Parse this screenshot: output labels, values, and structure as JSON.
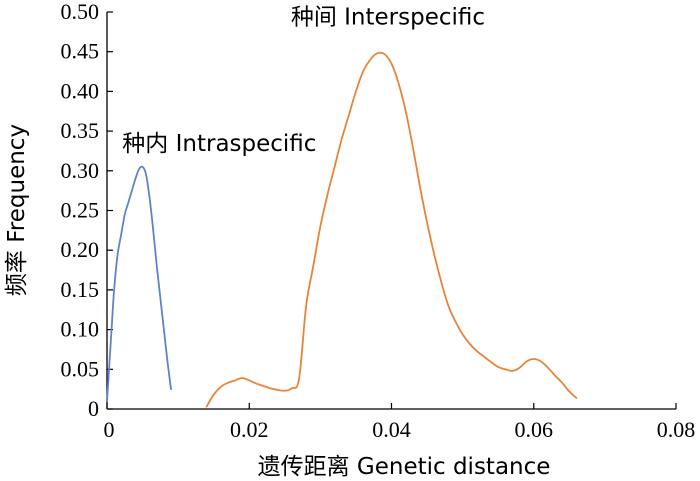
{
  "chart_data": {
    "type": "line",
    "xlabel": "遗传距离 Genetic  distance",
    "ylabel": "频率 Frequency",
    "xlim": [
      0,
      0.08
    ],
    "ylim": [
      0,
      0.5
    ],
    "x_ticks": [
      "0",
      "0.02",
      "0.04",
      "0.06",
      "0.08"
    ],
    "y_ticks": [
      "0",
      "0.05",
      "0.10",
      "0.15",
      "0.20",
      "0.25",
      "0.30",
      "0.35",
      "0.40",
      "0.45",
      "0.50"
    ],
    "grid": false,
    "series": [
      {
        "name": "种内 Intraspecific",
        "color": "#5b85c8",
        "x": [
          0.0,
          0.0005,
          0.001,
          0.0015,
          0.002,
          0.0025,
          0.003,
          0.0035,
          0.004,
          0.0045,
          0.005,
          0.0055,
          0.006,
          0.0065,
          0.007,
          0.0075,
          0.008,
          0.0085,
          0.009
        ],
        "y": [
          0.01,
          0.08,
          0.15,
          0.195,
          0.22,
          0.245,
          0.26,
          0.275,
          0.29,
          0.302,
          0.305,
          0.295,
          0.265,
          0.225,
          0.18,
          0.14,
          0.1,
          0.06,
          0.025
        ]
      },
      {
        "name": "种间 Interspecific",
        "color": "#e8843a",
        "x": [
          0.014,
          0.015,
          0.016,
          0.017,
          0.018,
          0.019,
          0.02,
          0.021,
          0.022,
          0.023,
          0.024,
          0.025,
          0.026,
          0.027,
          0.028,
          0.029,
          0.03,
          0.031,
          0.032,
          0.033,
          0.034,
          0.035,
          0.036,
          0.037,
          0.038,
          0.039,
          0.04,
          0.041,
          0.042,
          0.043,
          0.044,
          0.045,
          0.046,
          0.047,
          0.048,
          0.049,
          0.05,
          0.051,
          0.052,
          0.053,
          0.054,
          0.055,
          0.056,
          0.057,
          0.058,
          0.059,
          0.06,
          0.061,
          0.062,
          0.063,
          0.064,
          0.065,
          0.066
        ],
        "y": [
          0.003,
          0.018,
          0.028,
          0.033,
          0.036,
          0.039,
          0.036,
          0.032,
          0.029,
          0.026,
          0.024,
          0.023,
          0.026,
          0.038,
          0.13,
          0.18,
          0.23,
          0.27,
          0.305,
          0.34,
          0.37,
          0.4,
          0.425,
          0.44,
          0.448,
          0.447,
          0.435,
          0.41,
          0.375,
          0.33,
          0.28,
          0.235,
          0.195,
          0.16,
          0.13,
          0.11,
          0.094,
          0.082,
          0.073,
          0.066,
          0.059,
          0.053,
          0.05,
          0.048,
          0.052,
          0.06,
          0.063,
          0.06,
          0.052,
          0.042,
          0.033,
          0.022,
          0.014
        ]
      }
    ],
    "annotations": [
      {
        "text": "种间 Interspecific",
        "x": 0.0395,
        "y": 0.484
      },
      {
        "text": "种内 Intraspecific",
        "x": 0.0158,
        "y": 0.325
      }
    ]
  }
}
